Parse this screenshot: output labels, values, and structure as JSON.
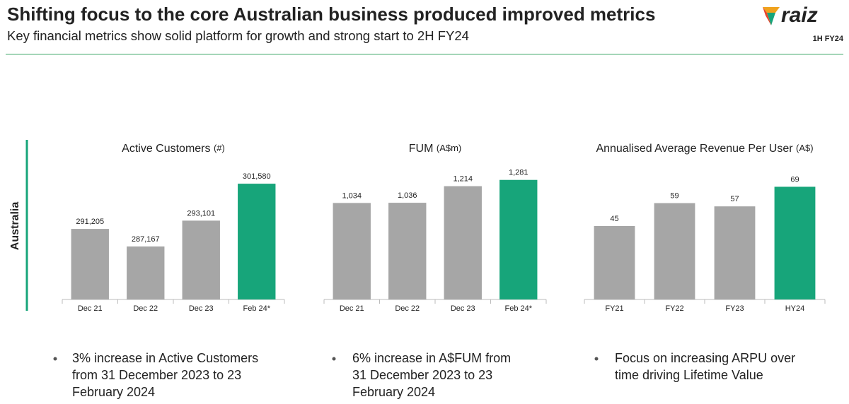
{
  "header": {
    "title": "Shifting focus to the core Australian business produced improved metrics",
    "subtitle": "Key financial metrics show solid platform for growth and strong start to 2H FY24"
  },
  "logo": {
    "name": "raiz",
    "badge": "1H FY24"
  },
  "region": "Australia",
  "chart_data": [
    {
      "type": "bar",
      "title": "Active Customers",
      "unit": "(#)",
      "categories": [
        "Dec 21",
        "Dec 22",
        "Dec 23",
        "Feb 24*"
      ],
      "values": [
        291205,
        287167,
        293101,
        301580
      ],
      "value_labels": [
        "291,205",
        "287,167",
        "293,101",
        "301,580"
      ],
      "colors": [
        "#a6a6a6",
        "#a6a6a6",
        "#a6a6a6",
        "#17a57a"
      ],
      "ylim": [
        275000,
        305000
      ]
    },
    {
      "type": "bar",
      "title": "FUM",
      "unit": "(A$m)",
      "categories": [
        "Dec 21",
        "Dec 22",
        "Dec 23",
        "Feb 24*"
      ],
      "values": [
        1034,
        1036,
        1214,
        1281
      ],
      "value_labels": [
        "1,034",
        "1,036",
        "1,214",
        "1,281"
      ],
      "colors": [
        "#a6a6a6",
        "#a6a6a6",
        "#a6a6a6",
        "#17a57a"
      ],
      "ylim": [
        0,
        1400
      ]
    },
    {
      "type": "bar",
      "title": "Annualised Average Revenue Per User",
      "unit": "(A$)",
      "categories": [
        "FY21",
        "FY22",
        "FY23",
        "HY24"
      ],
      "values": [
        45,
        59,
        57,
        69
      ],
      "colors": [
        "#a6a6a6",
        "#a6a6a6",
        "#a6a6a6",
        "#17a57a"
      ],
      "ylim": [
        0,
        80
      ]
    }
  ],
  "bullets": [
    [
      "3% increase in Active Customers",
      "from 31 December 2023 to 23",
      "February 2024"
    ],
    [
      "6% increase in A$FUM from",
      "31 December 2023 to 23",
      "February 2024"
    ],
    [
      "Focus on increasing ARPU over",
      "time driving Lifetime Value"
    ]
  ]
}
